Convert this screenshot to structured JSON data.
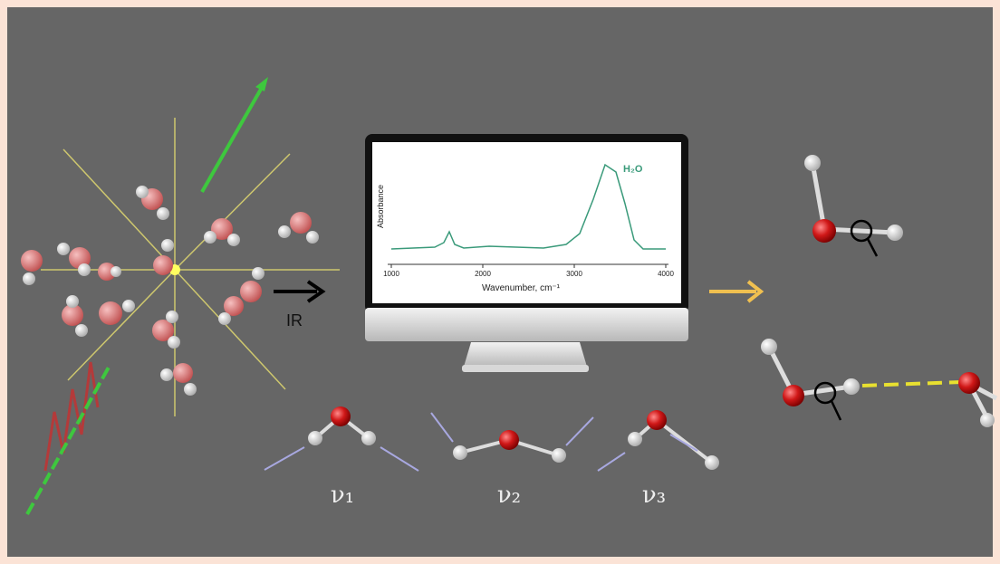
{
  "beam_label": "IR",
  "spectrum": {
    "y_label": "Absorbance",
    "x_label": "Wavenumber, cm⁻¹",
    "peak_label": "H₂O",
    "xticks": [
      1000,
      2000,
      3000,
      4000
    ]
  },
  "modes": [
    "ν₁",
    "ν₂",
    "ν₃"
  ]
}
